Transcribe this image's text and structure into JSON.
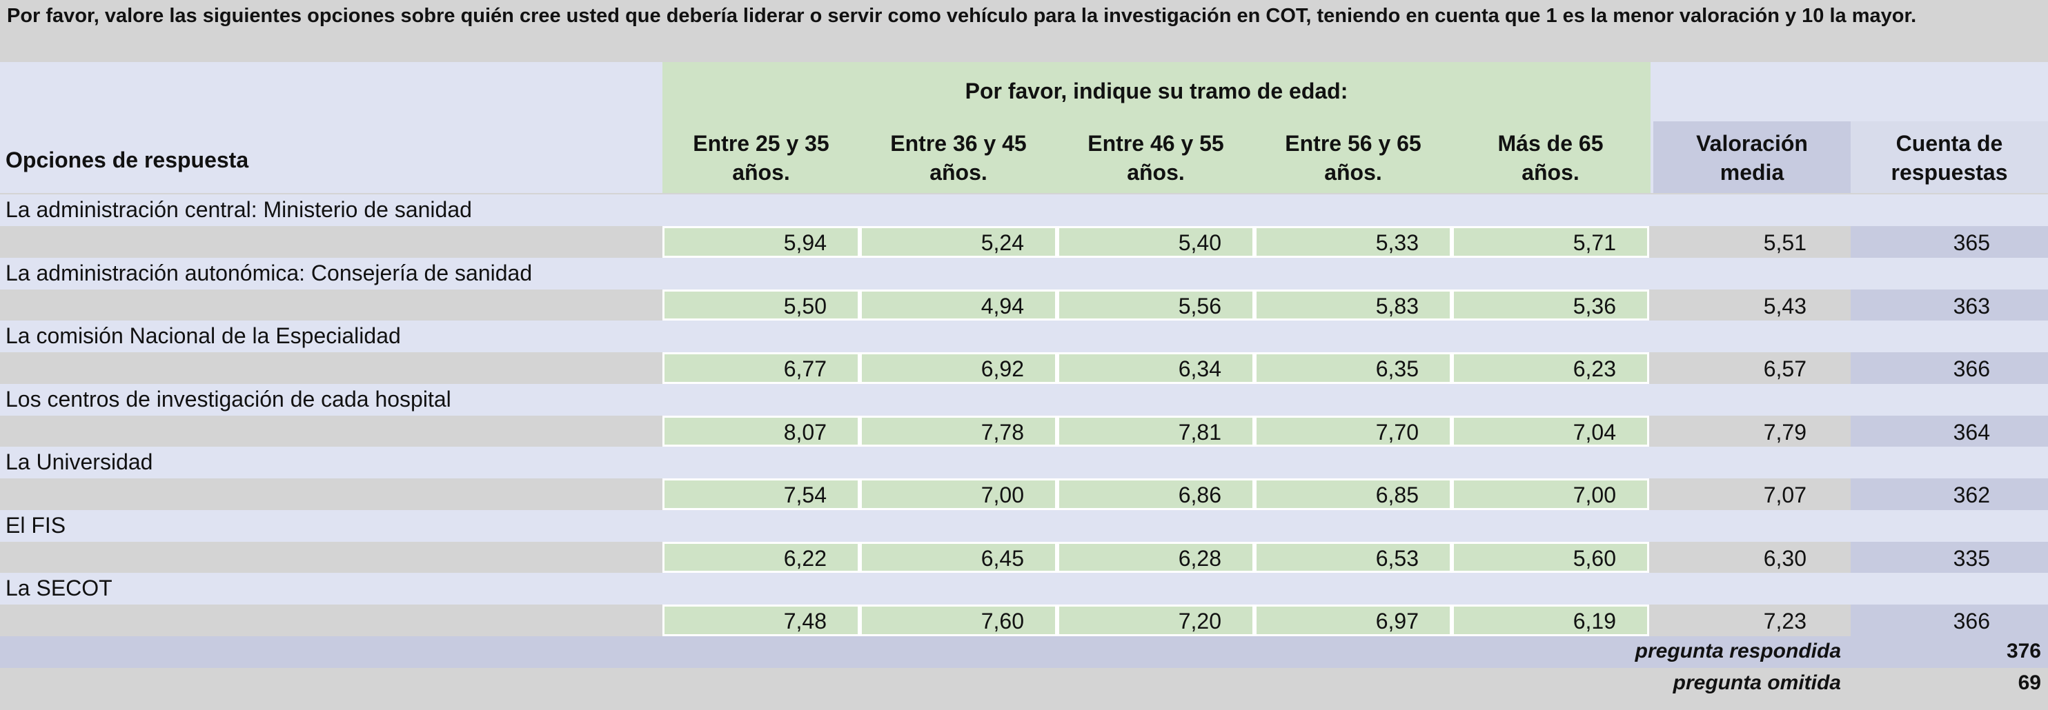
{
  "title": "Por favor, valore las siguientes opciones sobre quién cree usted que debería liderar o servir como vehículo para la investigación en COT, teniendo en cuenta que 1 es la menor valoración y 10 la mayor.",
  "header": {
    "group_label": "Por favor, indique su tramo de edad:",
    "options_label": "Opciones de respuesta",
    "age_groups": [
      [
        "Entre 25 y 35",
        "años."
      ],
      [
        "Entre 36 y 45",
        "años."
      ],
      [
        "Entre 46 y 55",
        "años."
      ],
      [
        "Entre 56 y 65",
        "años."
      ],
      [
        "Más de 65",
        "años."
      ]
    ],
    "mean_label": [
      "Valoración",
      "media"
    ],
    "count_label": [
      "Cuenta de",
      "respuestas"
    ]
  },
  "rows": [
    {
      "label": "La administración central: Ministerio de sanidad",
      "values": [
        "5,94",
        "5,24",
        "5,40",
        "5,33",
        "5,71"
      ],
      "mean": "5,51",
      "count": "365"
    },
    {
      "label": "La administración autonómica: Consejería de sanidad",
      "values": [
        "5,50",
        "4,94",
        "5,56",
        "5,83",
        "5,36"
      ],
      "mean": "5,43",
      "count": "363"
    },
    {
      "label": "La comisión Nacional de la Especialidad",
      "values": [
        "6,77",
        "6,92",
        "6,34",
        "6,35",
        "6,23"
      ],
      "mean": "6,57",
      "count": "366"
    },
    {
      "label": "Los centros de investigación de cada hospital",
      "values": [
        "8,07",
        "7,78",
        "7,81",
        "7,70",
        "7,04"
      ],
      "mean": "7,79",
      "count": "364"
    },
    {
      "label": "La Universidad",
      "values": [
        "7,54",
        "7,00",
        "6,86",
        "6,85",
        "7,00"
      ],
      "mean": "7,07",
      "count": "362"
    },
    {
      "label": "El FIS",
      "values": [
        "6,22",
        "6,45",
        "6,28",
        "6,53",
        "5,60"
      ],
      "mean": "6,30",
      "count": "335"
    },
    {
      "label": "La SECOT",
      "values": [
        "7,48",
        "7,60",
        "7,20",
        "6,97",
        "6,19"
      ],
      "mean": "7,23",
      "count": "366"
    }
  ],
  "footer": {
    "answered_label": "pregunta respondida",
    "answered_value": "376",
    "skipped_label": "pregunta omitida",
    "skipped_value": "69"
  }
}
